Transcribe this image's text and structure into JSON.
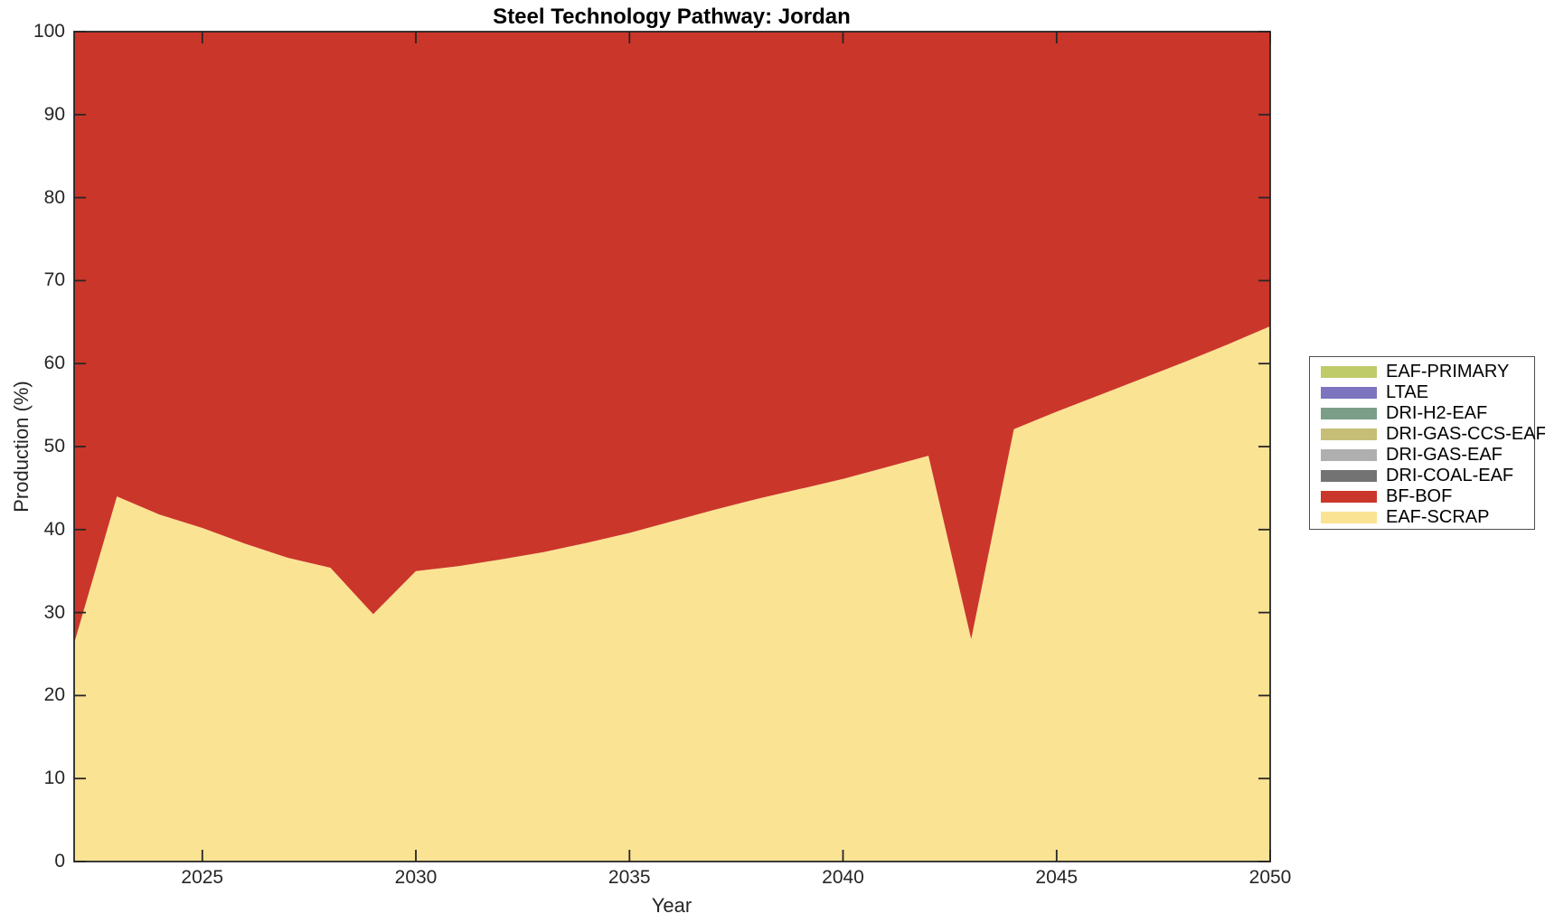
{
  "figure": {
    "background": "#ffffff",
    "axis_color": "#262626"
  },
  "chart": {
    "title": "Steel Technology Pathway: Jordan",
    "xlabel": "Year",
    "ylabel": "Production (%)"
  },
  "chart_data": {
    "type": "area",
    "stacked": true,
    "title": "Steel Technology Pathway: Jordan",
    "xlabel": "Year",
    "ylabel": "Production (%)",
    "xlim": [
      2022,
      2050
    ],
    "ylim": [
      0,
      100
    ],
    "grid": false,
    "legend_position": "right-outside",
    "x_ticks": [
      2025,
      2030,
      2035,
      2040,
      2045,
      2050
    ],
    "x_tick_labels": [
      "2025",
      "2030",
      "2035",
      "2040",
      "2045",
      "2050"
    ],
    "y_ticks": [
      0,
      10,
      20,
      30,
      40,
      50,
      60,
      70,
      80,
      90,
      100
    ],
    "y_tick_labels": [
      "0",
      "10",
      "20",
      "30",
      "40",
      "50",
      "60",
      "70",
      "80",
      "90",
      "100"
    ],
    "x": [
      2022,
      2023,
      2024,
      2025,
      2026,
      2027,
      2028,
      2029,
      2030,
      2031,
      2032,
      2033,
      2034,
      2035,
      2036,
      2037,
      2038,
      2039,
      2040,
      2041,
      2042,
      2043,
      2044,
      2045,
      2046,
      2047,
      2048,
      2049,
      2050
    ],
    "legend_order": [
      "EAF-PRIMARY",
      "LTAE",
      "DRI-H2-EAF",
      "DRI-GAS-CCS-EAF",
      "DRI-GAS-EAF",
      "DRI-COAL-EAF",
      "BF-BOF",
      "EAF-SCRAP"
    ],
    "draw_order_bottom_to_top": [
      "EAF-SCRAP",
      "BF-BOF",
      "DRI-COAL-EAF",
      "DRI-GAS-EAF",
      "DRI-GAS-CCS-EAF",
      "DRI-H2-EAF",
      "LTAE",
      "EAF-PRIMARY"
    ],
    "series": [
      {
        "name": "EAF-PRIMARY",
        "color": "#BFCB69",
        "values": [
          0,
          0,
          0,
          0,
          0,
          0,
          0,
          0,
          0,
          0,
          0,
          0,
          0,
          0,
          0,
          0,
          0,
          0,
          0,
          0,
          0,
          0,
          0,
          0,
          0,
          0,
          0,
          0,
          0
        ]
      },
      {
        "name": "LTAE",
        "color": "#7C74BE",
        "values": [
          0,
          0,
          0,
          0,
          0,
          0,
          0,
          0,
          0,
          0,
          0,
          0,
          0,
          0,
          0,
          0,
          0,
          0,
          0,
          0,
          0,
          0,
          0,
          0,
          0,
          0,
          0,
          0,
          0
        ]
      },
      {
        "name": "DRI-H2-EAF",
        "color": "#7A9E88",
        "values": [
          0,
          0,
          0,
          0,
          0,
          0,
          0,
          0,
          0,
          0,
          0,
          0,
          0,
          0,
          0,
          0,
          0,
          0,
          0,
          0,
          0,
          0,
          0,
          0,
          0,
          0,
          0,
          0,
          0
        ]
      },
      {
        "name": "DRI-GAS-CCS-EAF",
        "color": "#C6BE77",
        "values": [
          0,
          0,
          0,
          0,
          0,
          0,
          0,
          0,
          0,
          0,
          0,
          0,
          0,
          0,
          0,
          0,
          0,
          0,
          0,
          0,
          0,
          0,
          0,
          0,
          0,
          0,
          0,
          0,
          0
        ]
      },
      {
        "name": "DRI-GAS-EAF",
        "color": "#AFAFAF",
        "values": [
          0,
          0,
          0,
          0,
          0,
          0,
          0,
          0,
          0,
          0,
          0,
          0,
          0,
          0,
          0,
          0,
          0,
          0,
          0,
          0,
          0,
          0,
          0,
          0,
          0,
          0,
          0,
          0,
          0
        ]
      },
      {
        "name": "DRI-COAL-EAF",
        "color": "#737373",
        "values": [
          0,
          0,
          0,
          0,
          0,
          0,
          0,
          0,
          0,
          0,
          0,
          0,
          0,
          0,
          0,
          0,
          0,
          0,
          0,
          0,
          0,
          0,
          0,
          0,
          0,
          0,
          0,
          0,
          0
        ]
      },
      {
        "name": "BF-BOF",
        "color": "#CB362A",
        "values": [
          73.7,
          56.0,
          58.2,
          59.8,
          61.7,
          63.4,
          64.6,
          70.2,
          65.0,
          64.4,
          63.6,
          62.7,
          61.6,
          60.4,
          59.0,
          57.6,
          56.3,
          55.1,
          53.9,
          52.5,
          51.1,
          73.2,
          47.9,
          45.8,
          43.8,
          41.8,
          39.8,
          37.7,
          35.5
        ]
      },
      {
        "name": "EAF-SCRAP",
        "color": "#FBE394",
        "values": [
          26.3,
          44.0,
          41.8,
          40.2,
          38.3,
          36.6,
          35.4,
          29.8,
          35.0,
          35.6,
          36.4,
          37.3,
          38.4,
          39.6,
          41.0,
          42.4,
          43.7,
          44.9,
          46.1,
          47.5,
          48.9,
          26.8,
          52.1,
          54.2,
          56.2,
          58.2,
          60.2,
          62.3,
          64.5
        ]
      }
    ]
  }
}
